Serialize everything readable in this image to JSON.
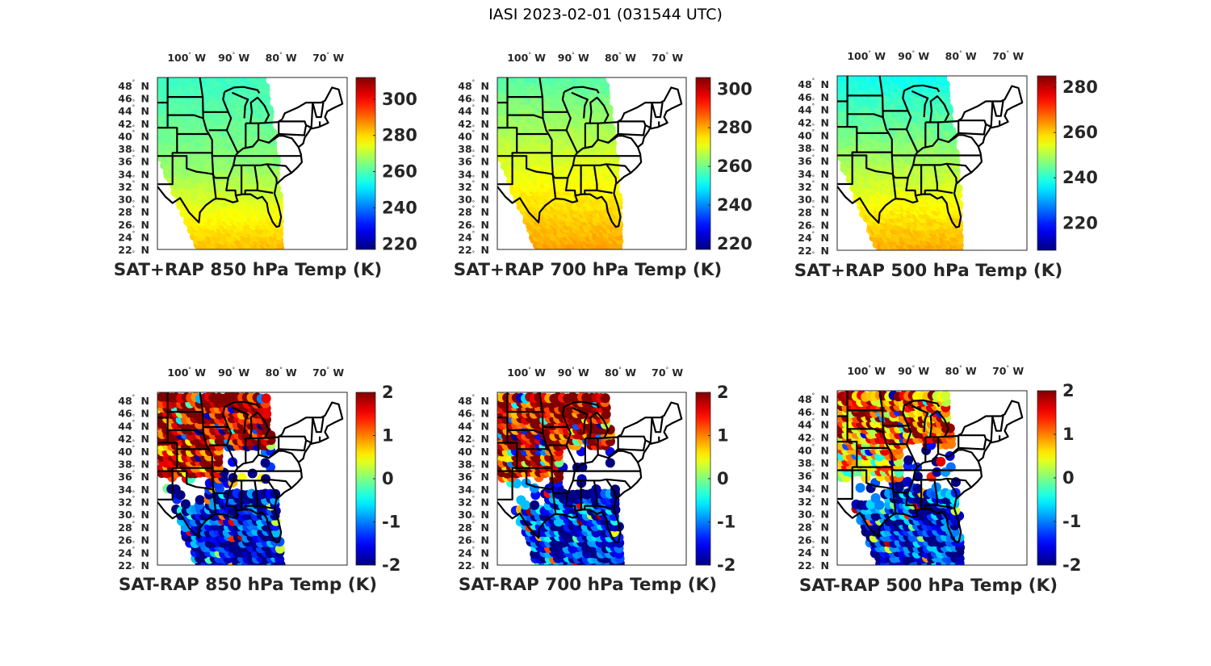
{
  "figure_title": "IASI 2023-02-01 (031544 UTC)",
  "chart_data": [
    {
      "type": "heatmap",
      "title": "SAT+RAP 850 hPa Temp (K)",
      "colormap": "jet",
      "colorbar": {
        "min": 217,
        "max": 312,
        "ticks": [
          220,
          240,
          260,
          280,
          300
        ]
      },
      "x_ticks": [
        "100° W",
        "90° W",
        "80° W",
        "70° W"
      ],
      "y_ticks": [
        "48° N",
        "46° N",
        "44° N",
        "42° N",
        "40° N",
        "38° N",
        "36° N",
        "34° N",
        "32° N",
        "30° N",
        "28° N",
        "26° N",
        "24° N",
        "22° N"
      ],
      "description": "Satellite swath over central/eastern US; ~255-262 K in north, ~265-272 K mid, ~278-285 K over Gulf",
      "field": {
        "north": 258,
        "mid": 266,
        "south": 283
      }
    },
    {
      "type": "heatmap",
      "title": "SAT+RAP 700 hPa Temp (K)",
      "colormap": "jet",
      "colorbar": {
        "min": 217,
        "max": 306,
        "ticks": [
          220,
          240,
          260,
          280,
          300
        ]
      },
      "x_ticks": [
        "100° W",
        "90° W",
        "80° W",
        "70° W"
      ],
      "y_ticks": [
        "48° N",
        "46° N",
        "44° N",
        "42° N",
        "40° N",
        "38° N",
        "36° N",
        "34° N",
        "32° N",
        "30° N",
        "28° N",
        "26° N",
        "24° N",
        "22° N"
      ],
      "description": "~258 K north, ~270 K mid, ~280 K Gulf",
      "field": {
        "north": 258,
        "mid": 270,
        "south": 281
      }
    },
    {
      "type": "heatmap",
      "title": "SAT+RAP 500 hPa Temp (K)",
      "colormap": "jet",
      "colorbar": {
        "min": 208,
        "max": 285,
        "ticks": [
          220,
          240,
          260,
          280
        ]
      },
      "x_ticks": [
        "100° W",
        "90° W",
        "80° W",
        "70° W"
      ],
      "y_ticks": [
        "48° N",
        "46° N",
        "44° N",
        "42° N",
        "40° N",
        "38° N",
        "36° N",
        "34° N",
        "32° N",
        "30° N",
        "28° N",
        "26° N",
        "24° N",
        "22° N"
      ],
      "description": "~240 K north, ~252 K mid, ~262 K Gulf",
      "field": {
        "north": 238,
        "mid": 250,
        "south": 263
      }
    },
    {
      "type": "heatmap",
      "title": "SAT-RAP 850 hPa Temp (K)",
      "colormap": "jet",
      "colorbar": {
        "min": -2,
        "max": 2,
        "ticks": [
          -2,
          -1,
          0,
          1,
          2
        ]
      },
      "x_ticks": [
        "100° W",
        "90° W",
        "80° W",
        "70° W"
      ],
      "y_ticks": [
        "48° N",
        "46° N",
        "44° N",
        "42° N",
        "40° N",
        "38° N",
        "36° N",
        "34° N",
        "32° N",
        "30° N",
        "28° N",
        "26° N",
        "24° N",
        "22° N"
      ],
      "description": "Scattered footprints: ~+2 K over northern plains/midwest, ~-2 K over Gulf/southeast",
      "field": {
        "north": 2.0,
        "mid": 1.5,
        "south": -1.8
      }
    },
    {
      "type": "heatmap",
      "title": "SAT-RAP 700 hPa Temp (K)",
      "colormap": "jet",
      "colorbar": {
        "min": -2,
        "max": 2,
        "ticks": [
          -2,
          -1,
          0,
          1,
          2
        ]
      },
      "x_ticks": [
        "100° W",
        "90° W",
        "80° W",
        "70° W"
      ],
      "y_ticks": [
        "48° N",
        "46° N",
        "44° N",
        "42° N",
        "40° N",
        "38° N",
        "36° N",
        "34° N",
        "32° N",
        "30° N",
        "28° N",
        "26° N",
        "24° N",
        "22° N"
      ],
      "description": "~+2 K over plains/midwest, mostly -2 K over Gulf with scattered positive streaks",
      "field": {
        "north": 1.8,
        "mid": 1.6,
        "south": -1.5
      }
    },
    {
      "type": "heatmap",
      "title": "SAT-RAP 500 hPa Temp (K)",
      "colormap": "jet",
      "colorbar": {
        "min": -2,
        "max": 2,
        "ticks": [
          -2,
          -1,
          0,
          1,
          2
        ]
      },
      "x_ticks": [
        "100° W",
        "90° W",
        "80° W",
        "70° W"
      ],
      "y_ticks": [
        "48° N",
        "46° N",
        "44° N",
        "42° N",
        "40° N",
        "38° N",
        "36° N",
        "34° N",
        "32° N",
        "30° N",
        "28° N",
        "26° N",
        "24° N",
        "22° N"
      ],
      "description": "~+1 to +2 K in north, mixed mid, ~-2 K over central Gulf, mixed along edges",
      "field": {
        "north": 1.3,
        "mid": 0.6,
        "south": -1.6
      }
    }
  ]
}
